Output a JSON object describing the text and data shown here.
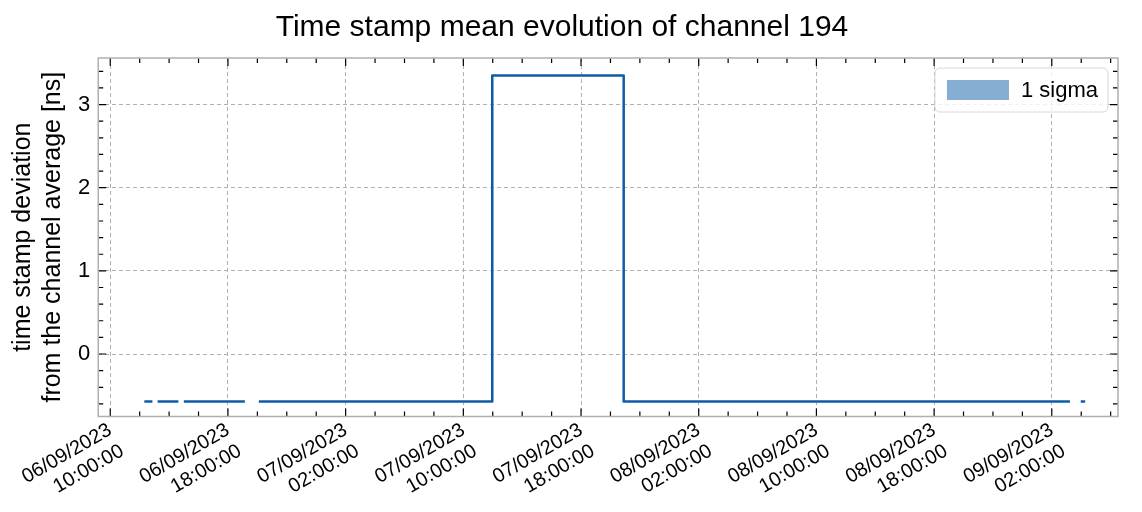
{
  "chart_data": {
    "type": "step",
    "title": "Time stamp mean evolution of channel 194",
    "ylabel": "time stamp deviation\nfrom the channel average [ns]",
    "x": [
      "2023-09-06T12:19",
      "2023-09-06T12:52",
      "2023-09-06T13:02",
      "2023-09-06T13:13",
      "2023-09-06T14:38",
      "2023-09-06T14:49",
      "2023-09-06T15:00",
      "2023-09-06T19:09",
      "2023-09-06T19:30",
      "2023-09-06T20:06",
      "2023-09-07T11:58",
      "2023-09-07T20:54",
      "2023-09-09T03:14",
      "2023-09-09T03:40",
      "2023-09-09T03:58",
      "2023-09-09T04:16"
    ],
    "series": [
      {
        "name": "1 sigma",
        "color": "#0c5da5",
        "values": [
          -0.57,
          -0.57,
          null,
          -0.57,
          -0.57,
          null,
          -0.57,
          -0.57,
          null,
          -0.57,
          3.35,
          -0.57,
          -0.57,
          null,
          -0.57,
          -0.57
        ]
      }
    ],
    "xlim": [
      "2023-09-06T09:11",
      "2023-09-09T06:30"
    ],
    "xticks": [
      {
        "value": "2023-09-06T10:00",
        "label": "06/09/2023\n10:00:00"
      },
      {
        "value": "2023-09-06T12:00",
        "label": null
      },
      {
        "value": "2023-09-06T14:00",
        "label": null
      },
      {
        "value": "2023-09-06T16:00",
        "label": null
      },
      {
        "value": "2023-09-06T18:00",
        "label": "06/09/2023\n18:00:00"
      },
      {
        "value": "2023-09-06T20:00",
        "label": null
      },
      {
        "value": "2023-09-06T22:00",
        "label": null
      },
      {
        "value": "2023-09-07T00:00",
        "label": null
      },
      {
        "value": "2023-09-07T02:00",
        "label": "07/09/2023\n02:00:00"
      },
      {
        "value": "2023-09-07T04:00",
        "label": null
      },
      {
        "value": "2023-09-07T06:00",
        "label": null
      },
      {
        "value": "2023-09-07T08:00",
        "label": null
      },
      {
        "value": "2023-09-07T10:00",
        "label": "07/09/2023\n10:00:00"
      },
      {
        "value": "2023-09-07T12:00",
        "label": null
      },
      {
        "value": "2023-09-07T14:00",
        "label": null
      },
      {
        "value": "2023-09-07T16:00",
        "label": null
      },
      {
        "value": "2023-09-07T18:00",
        "label": "07/09/2023\n18:00:00"
      },
      {
        "value": "2023-09-07T20:00",
        "label": null
      },
      {
        "value": "2023-09-07T22:00",
        "label": null
      },
      {
        "value": "2023-09-08T00:00",
        "label": null
      },
      {
        "value": "2023-09-08T02:00",
        "label": "08/09/2023\n02:00:00"
      },
      {
        "value": "2023-09-08T04:00",
        "label": null
      },
      {
        "value": "2023-09-08T06:00",
        "label": null
      },
      {
        "value": "2023-09-08T08:00",
        "label": null
      },
      {
        "value": "2023-09-08T10:00",
        "label": "08/09/2023\n10:00:00"
      },
      {
        "value": "2023-09-08T12:00",
        "label": null
      },
      {
        "value": "2023-09-08T14:00",
        "label": null
      },
      {
        "value": "2023-09-08T16:00",
        "label": null
      },
      {
        "value": "2023-09-08T18:00",
        "label": "08/09/2023\n18:00:00"
      },
      {
        "value": "2023-09-08T20:00",
        "label": null
      },
      {
        "value": "2023-09-08T22:00",
        "label": null
      },
      {
        "value": "2023-09-09T00:00",
        "label": null
      },
      {
        "value": "2023-09-09T02:00",
        "label": "09/09/2023\n02:00:00"
      },
      {
        "value": "2023-09-09T04:00",
        "label": null
      },
      {
        "value": "2023-09-09T06:00",
        "label": null
      }
    ],
    "ylim": [
      -0.75,
      3.56
    ],
    "yticks": [
      {
        "value": -0.6,
        "label": null
      },
      {
        "value": -0.4,
        "label": null
      },
      {
        "value": -0.2,
        "label": null
      },
      0,
      {
        "value": 0.2,
        "label": null
      },
      {
        "value": 0.4,
        "label": null
      },
      {
        "value": 0.6,
        "label": null
      },
      {
        "value": 0.8,
        "label": null
      },
      1,
      {
        "value": 1.2,
        "label": null
      },
      {
        "value": 1.4,
        "label": null
      },
      {
        "value": 1.6,
        "label": null
      },
      {
        "value": 1.8,
        "label": null
      },
      2,
      {
        "value": 2.2,
        "label": null
      },
      {
        "value": 2.4,
        "label": null
      },
      {
        "value": 2.6,
        "label": null
      },
      {
        "value": 2.8,
        "label": null
      },
      3,
      {
        "value": 3.2,
        "label": null
      },
      {
        "value": 3.4,
        "label": null
      }
    ],
    "grid": true,
    "legend": "top right"
  }
}
